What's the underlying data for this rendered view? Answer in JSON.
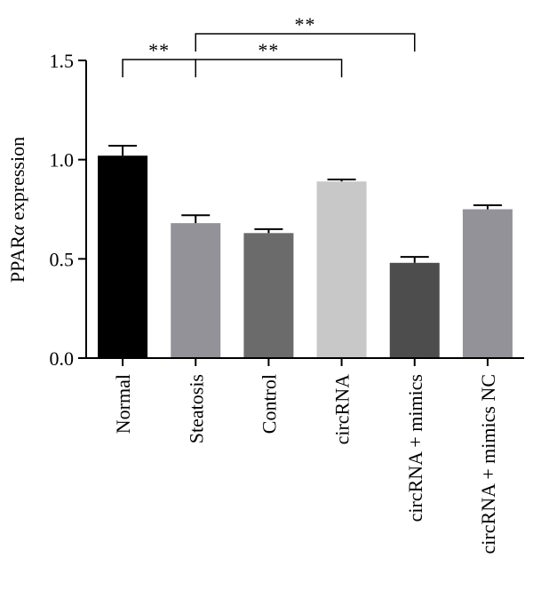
{
  "chart_data": {
    "type": "bar",
    "title": "",
    "xlabel": "",
    "ylabel_prefix": "PPAR",
    "ylabel_greek": "α",
    "ylabel_suffix": " expression",
    "ylim": [
      0,
      1.5
    ],
    "yticks": [
      0.0,
      0.5,
      1.0,
      1.5
    ],
    "ytick_labels": [
      "0.0",
      "0.5",
      "1.0",
      "1.5"
    ],
    "grid": false,
    "categories": [
      "Normal",
      "Steatosis",
      "Control",
      "circRNA",
      "circRNA + mimics",
      "circRNA + mimics NC"
    ],
    "values": [
      1.02,
      0.68,
      0.63,
      0.89,
      0.48,
      0.75
    ],
    "errors": [
      0.05,
      0.04,
      0.02,
      0.01,
      0.03,
      0.02
    ],
    "colors": [
      "#000000",
      "#929298",
      "#6b6b6b",
      "#c8c8c8",
      "#4d4d4d",
      "#929298"
    ],
    "significance": [
      {
        "from": 0,
        "to": 1,
        "label": "**"
      },
      {
        "from": 1,
        "to": 3,
        "label": "**"
      },
      {
        "from": 1,
        "to": 4,
        "label": "**"
      }
    ]
  }
}
